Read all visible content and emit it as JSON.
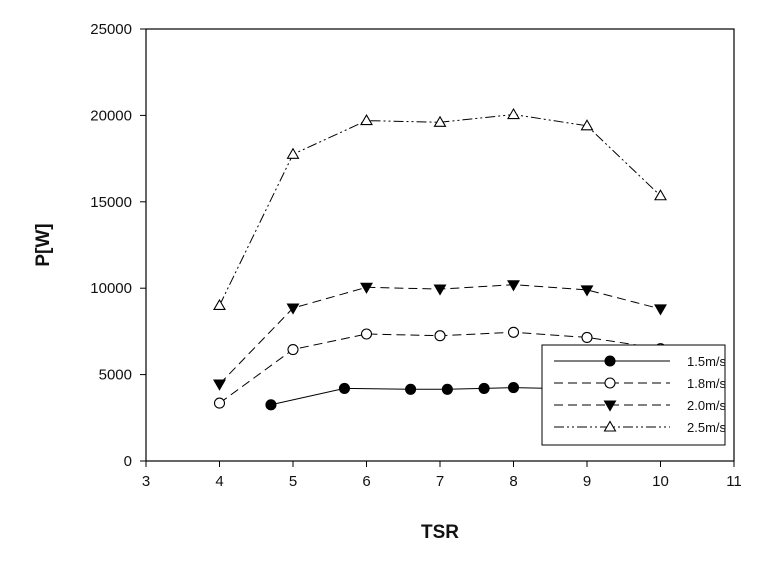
{
  "chart_data": {
    "type": "line",
    "title": "",
    "xlabel": "TSR",
    "ylabel": "P[W]",
    "xlim": [
      3,
      11
    ],
    "ylim": [
      0,
      25000
    ],
    "xticks": [
      3,
      4,
      5,
      6,
      7,
      8,
      9,
      10,
      11
    ],
    "yticks": [
      0,
      5000,
      10000,
      15000,
      20000,
      25000
    ],
    "grid": false,
    "legend_position": "bottom-right",
    "series": [
      {
        "name": "1.5m/s",
        "marker": "filled-circle",
        "line_style": "solid",
        "points": [
          [
            4.7,
            3250
          ],
          [
            5.7,
            4200
          ],
          [
            6.6,
            4150
          ],
          [
            7.1,
            4150
          ],
          [
            7.6,
            4200
          ],
          [
            8.0,
            4250
          ],
          [
            8.5,
            4200
          ],
          [
            9.5,
            3950
          ]
        ]
      },
      {
        "name": "1.8m/s",
        "marker": "open-circle",
        "line_style": "dashed",
        "points": [
          [
            4,
            3350
          ],
          [
            5,
            6450
          ],
          [
            6,
            7350
          ],
          [
            7,
            7250
          ],
          [
            8,
            7450
          ],
          [
            9,
            7150
          ],
          [
            10,
            6500
          ]
        ]
      },
      {
        "name": "2.0m/s",
        "marker": "filled-triangle-down",
        "line_style": "dashed",
        "points": [
          [
            4,
            4450
          ],
          [
            5,
            8850
          ],
          [
            6,
            10050
          ],
          [
            7,
            9950
          ],
          [
            8,
            10200
          ],
          [
            9,
            9900
          ],
          [
            10,
            8800
          ]
        ]
      },
      {
        "name": "2.5m/s",
        "marker": "open-triangle-up",
        "line_style": "dash-dot-dot",
        "points": [
          [
            4,
            9000
          ],
          [
            5,
            17750
          ],
          [
            6,
            19700
          ],
          [
            7,
            19600
          ],
          [
            8,
            20050
          ],
          [
            9,
            19400
          ],
          [
            10,
            15350
          ]
        ]
      }
    ]
  }
}
